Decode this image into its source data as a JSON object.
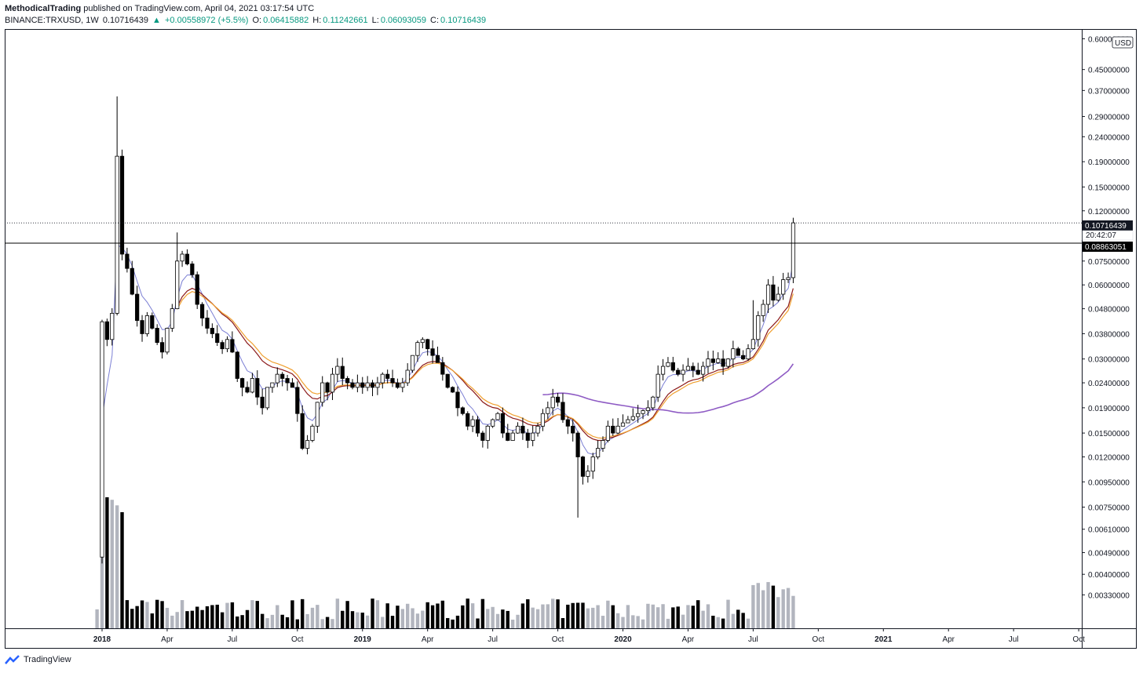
{
  "header": {
    "author": "MethodicalTrading",
    "published": "published on TradingView.com, April 04, 2021 03:17:54 UTC",
    "symbol": "BINANCE:TRXUSD, 1W",
    "last": "0.10716439",
    "change": "+0.00558972 (+5.5%)",
    "o_label": "O:",
    "o": "0.06415882",
    "h_label": "H:",
    "h": "0.11242661",
    "l_label": "L:",
    "l": "0.06093059",
    "c_label": "C:",
    "c": "0.10716439"
  },
  "currency_button": "USD",
  "price_tags": {
    "last_price": "0.10716439",
    "countdown": "20:42:07",
    "level": "0.08863051"
  },
  "footer": {
    "brand": "TradingView"
  },
  "colors": {
    "candle_up": "#ffffff",
    "candle_down": "#000000",
    "outline": "#000000",
    "vol_up": "#b2b5be",
    "vol_down": "#000000",
    "ma_fast": "#7b7fd4",
    "ma_mid": "#8b1a1a",
    "ma_slow": "#f0a030",
    "ma_long": "#8e5bc4",
    "level_line": "#000000",
    "last_line": "#131722"
  },
  "chart_data": {
    "type": "candlestick",
    "title": "BINANCE:TRXUSD, 1W",
    "scale": "log",
    "ylim": [
      0.0029,
      0.62
    ],
    "y_ticks": [
      "0.60000000",
      "0.45000000",
      "0.37000000",
      "0.29000000",
      "0.24000000",
      "0.19000000",
      "0.15000000",
      "0.12000000",
      "0.07500000",
      "0.06000000",
      "0.04800000",
      "0.03800000",
      "0.03000000",
      "0.02400000",
      "0.01900000",
      "0.01500000",
      "0.01200000",
      "0.00950000",
      "0.00750000",
      "0.00610000",
      "0.00490000",
      "0.00400000",
      "0.00330000"
    ],
    "x_ticks": [
      {
        "label": "2018",
        "bold": true,
        "t": 0
      },
      {
        "label": "Apr",
        "t": 13
      },
      {
        "label": "Jul",
        "t": 26
      },
      {
        "label": "Oct",
        "t": 39
      },
      {
        "label": "2019",
        "bold": true,
        "t": 52
      },
      {
        "label": "Apr",
        "t": 65
      },
      {
        "label": "Jul",
        "t": 78
      },
      {
        "label": "Oct",
        "t": 91
      },
      {
        "label": "2020",
        "bold": true,
        "t": 104
      },
      {
        "label": "Apr",
        "t": 117
      },
      {
        "label": "Jul",
        "t": 130
      },
      {
        "label": "Oct",
        "t": 143
      },
      {
        "label": "2021",
        "bold": true,
        "t": 156
      },
      {
        "label": "Apr",
        "t": 169
      },
      {
        "label": "Jul",
        "t": 182
      },
      {
        "label": "Oct",
        "t": 195
      }
    ],
    "horizontal_level": 0.08863051,
    "last_close": 0.10716439,
    "price_anchors": [
      [
        -2,
        0.0045
      ],
      [
        -1,
        0.0047
      ],
      [
        0,
        0.0425
      ],
      [
        1,
        0.036
      ],
      [
        2,
        0.046
      ],
      [
        3,
        0.2
      ],
      [
        4,
        0.08
      ],
      [
        5,
        0.07
      ],
      [
        6,
        0.055
      ],
      [
        7,
        0.043
      ],
      [
        8,
        0.038
      ],
      [
        9,
        0.045
      ],
      [
        10,
        0.04
      ],
      [
        11,
        0.035
      ],
      [
        12,
        0.032
      ],
      [
        13,
        0.04
      ],
      [
        14,
        0.048
      ],
      [
        15,
        0.075
      ],
      [
        16,
        0.08
      ],
      [
        17,
        0.073
      ],
      [
        18,
        0.066
      ],
      [
        19,
        0.05
      ],
      [
        20,
        0.044
      ],
      [
        21,
        0.04
      ],
      [
        22,
        0.038
      ],
      [
        23,
        0.035
      ],
      [
        24,
        0.033
      ],
      [
        25,
        0.036
      ],
      [
        26,
        0.032
      ],
      [
        27,
        0.025
      ],
      [
        28,
        0.023
      ],
      [
        29,
        0.022
      ],
      [
        30,
        0.025
      ],
      [
        31,
        0.021
      ],
      [
        32,
        0.019
      ],
      [
        33,
        0.023
      ],
      [
        34,
        0.024
      ],
      [
        35,
        0.026
      ],
      [
        36,
        0.025
      ],
      [
        37,
        0.024
      ],
      [
        38,
        0.023
      ],
      [
        39,
        0.018
      ],
      [
        40,
        0.013
      ],
      [
        41,
        0.014
      ],
      [
        42,
        0.016
      ],
      [
        43,
        0.02
      ],
      [
        44,
        0.024
      ],
      [
        45,
        0.022
      ],
      [
        46,
        0.026
      ],
      [
        47,
        0.028
      ],
      [
        48,
        0.025
      ],
      [
        49,
        0.024
      ],
      [
        50,
        0.023
      ],
      [
        51,
        0.024
      ],
      [
        52,
        0.023
      ],
      [
        53,
        0.024
      ],
      [
        54,
        0.023
      ],
      [
        55,
        0.024
      ],
      [
        56,
        0.026
      ],
      [
        57,
        0.025
      ],
      [
        58,
        0.024
      ],
      [
        59,
        0.023
      ],
      [
        60,
        0.024
      ],
      [
        61,
        0.027
      ],
      [
        62,
        0.031
      ],
      [
        63,
        0.035
      ],
      [
        64,
        0.036
      ],
      [
        65,
        0.033
      ],
      [
        66,
        0.031
      ],
      [
        67,
        0.029
      ],
      [
        68,
        0.026
      ],
      [
        69,
        0.023
      ],
      [
        70,
        0.022
      ],
      [
        71,
        0.019
      ],
      [
        72,
        0.018
      ],
      [
        73,
        0.016
      ],
      [
        74,
        0.017
      ],
      [
        75,
        0.015
      ],
      [
        76,
        0.014
      ],
      [
        77,
        0.016
      ],
      [
        78,
        0.017
      ],
      [
        79,
        0.018
      ],
      [
        80,
        0.015
      ],
      [
        81,
        0.014
      ],
      [
        82,
        0.015
      ],
      [
        83,
        0.016
      ],
      [
        84,
        0.015
      ],
      [
        85,
        0.014
      ],
      [
        86,
        0.015
      ],
      [
        87,
        0.016
      ],
      [
        88,
        0.018
      ],
      [
        89,
        0.019
      ],
      [
        90,
        0.021
      ],
      [
        91,
        0.02
      ],
      [
        92,
        0.017
      ],
      [
        93,
        0.016
      ],
      [
        94,
        0.015
      ],
      [
        95,
        0.012
      ],
      [
        96,
        0.01
      ],
      [
        97,
        0.0105
      ],
      [
        98,
        0.012
      ],
      [
        99,
        0.013
      ],
      [
        100,
        0.014
      ],
      [
        101,
        0.016
      ],
      [
        102,
        0.015
      ],
      [
        103,
        0.016
      ],
      [
        104,
        0.0165
      ],
      [
        105,
        0.017
      ],
      [
        106,
        0.0175
      ],
      [
        107,
        0.018
      ],
      [
        108,
        0.0185
      ],
      [
        109,
        0.019
      ],
      [
        110,
        0.021
      ],
      [
        111,
        0.026
      ],
      [
        112,
        0.028
      ],
      [
        113,
        0.029
      ],
      [
        114,
        0.027
      ],
      [
        115,
        0.026
      ],
      [
        116,
        0.027
      ],
      [
        117,
        0.028
      ],
      [
        118,
        0.027
      ],
      [
        119,
        0.026
      ],
      [
        120,
        0.028
      ],
      [
        121,
        0.03
      ],
      [
        122,
        0.029
      ],
      [
        123,
        0.03
      ],
      [
        124,
        0.028
      ],
      [
        125,
        0.03
      ],
      [
        126,
        0.033
      ],
      [
        127,
        0.031
      ],
      [
        128,
        0.03
      ],
      [
        129,
        0.033
      ],
      [
        130,
        0.036
      ],
      [
        131,
        0.045
      ],
      [
        132,
        0.05
      ],
      [
        133,
        0.06
      ],
      [
        134,
        0.052
      ],
      [
        135,
        0.055
      ],
      [
        136,
        0.063
      ],
      [
        137,
        0.0642
      ],
      [
        138,
        0.1072
      ]
    ],
    "moving_averages": [
      {
        "key": "ma_fast",
        "period": "short"
      },
      {
        "key": "ma_mid",
        "period": "medium"
      },
      {
        "key": "ma_slow",
        "period": "medium-long"
      },
      {
        "key": "ma_long",
        "period": "long"
      }
    ]
  }
}
